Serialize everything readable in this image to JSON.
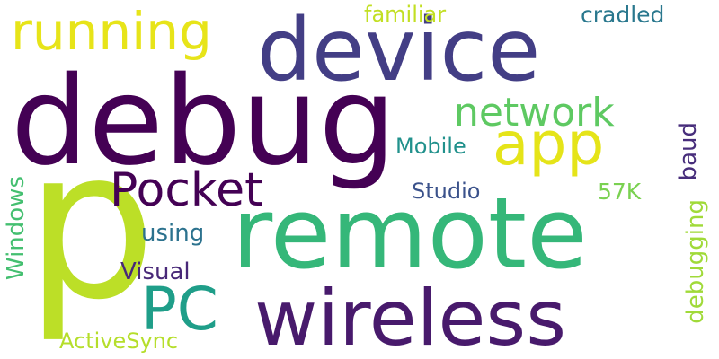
{
  "words": [
    {
      "text": "p",
      "color": "#bcdf27"
    },
    {
      "text": "debug",
      "color": "#440154"
    },
    {
      "text": "remote",
      "color": "#35b779"
    },
    {
      "text": "device",
      "color": "#433e85"
    },
    {
      "text": "wireless",
      "color": "#481a6c"
    },
    {
      "text": "Pocket",
      "color": "#440154"
    },
    {
      "text": "PC",
      "color": "#1f9e89"
    },
    {
      "text": "app",
      "color": "#e5e419"
    },
    {
      "text": "running",
      "color": "#e7e419"
    },
    {
      "text": "network",
      "color": "#5ec962"
    },
    {
      "text": "Mobile",
      "color": "#21918c"
    },
    {
      "text": "Studio",
      "color": "#3b528b"
    },
    {
      "text": "using",
      "color": "#2c728e"
    },
    {
      "text": "Visual",
      "color": "#482878"
    },
    {
      "text": "ActiveSync",
      "color": "#b5de2b"
    },
    {
      "text": "familiar",
      "color": "#c2df23"
    },
    {
      "text": "cradled",
      "color": "#2a788e"
    },
    {
      "text": "57K",
      "color": "#7ad151"
    },
    {
      "text": "baud",
      "color": "#472d7b"
    },
    {
      "text": "Windows",
      "color": "#44bf70"
    },
    {
      "text": "debugging",
      "color": "#a0da39"
    }
  ]
}
